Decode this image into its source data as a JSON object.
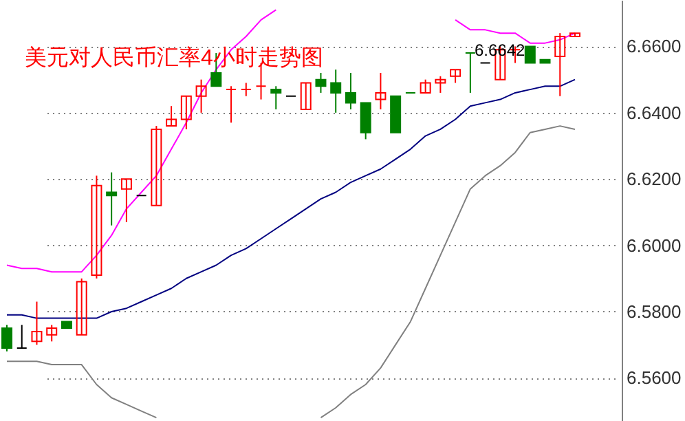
{
  "chart_data": {
    "type": "candlestick",
    "title": "美元对人民币汇率4小时走势图",
    "annotations": [
      {
        "text": "6.6642",
        "y": 6.6642
      }
    ],
    "categories": [
      null,
      null,
      null,
      null,
      null,
      null,
      null,
      null,
      null,
      null,
      null,
      null,
      null,
      null,
      null,
      null,
      null,
      null,
      null,
      null,
      null,
      null,
      null,
      null,
      null,
      null,
      null,
      null,
      null,
      null,
      null,
      null,
      null,
      null,
      null,
      null,
      null,
      null,
      null
    ],
    "ohlc": [
      [
        6.575,
        6.576,
        6.568,
        6.569
      ],
      [
        6.569,
        6.576,
        6.569,
        6.569
      ],
      [
        6.571,
        6.583,
        6.57,
        6.574
      ],
      [
        6.573,
        6.576,
        6.571,
        6.575
      ],
      [
        6.577,
        6.577,
        6.575,
        6.575
      ],
      [
        6.573,
        6.59,
        6.573,
        6.589
      ],
      [
        6.591,
        6.621,
        6.59,
        6.618
      ],
      [
        6.616,
        6.622,
        6.606,
        6.615
      ],
      [
        6.617,
        6.62,
        6.607,
        6.62
      ],
      [
        6.615,
        6.615,
        6.615,
        6.615
      ],
      [
        6.612,
        6.636,
        6.612,
        6.635
      ],
      [
        6.636,
        6.642,
        6.636,
        6.638
      ],
      [
        6.638,
        6.645,
        6.635,
        6.645
      ],
      [
        6.645,
        6.65,
        6.64,
        6.648
      ],
      [
        6.652,
        6.658,
        6.648,
        6.648
      ],
      [
        6.647,
        6.648,
        6.637,
        6.647
      ],
      [
        6.647,
        6.649,
        6.645,
        6.647
      ],
      [
        6.648,
        6.655,
        6.644,
        6.648
      ],
      [
        6.647,
        6.648,
        6.641,
        6.646
      ],
      [
        6.645,
        6.645,
        6.645,
        6.645
      ],
      [
        6.641,
        6.649,
        6.641,
        6.649
      ],
      [
        6.65,
        6.652,
        6.646,
        6.648
      ],
      [
        6.649,
        6.653,
        6.64,
        6.646
      ],
      [
        6.646,
        6.652,
        6.641,
        6.643
      ],
      [
        6.643,
        6.643,
        6.632,
        6.634
      ],
      [
        6.644,
        6.652,
        6.641,
        6.646
      ],
      [
        6.645,
        6.645,
        6.634,
        6.634
      ],
      [
        6.646,
        6.646,
        6.646,
        6.646
      ],
      [
        6.646,
        6.65,
        6.646,
        6.649
      ],
      [
        6.649,
        6.651,
        6.646,
        6.65
      ],
      [
        6.651,
        6.653,
        6.649,
        6.653
      ],
      [
        6.658,
        6.658,
        6.646,
        6.658
      ],
      [
        6.655,
        6.655,
        6.655,
        6.655
      ],
      [
        6.65,
        6.66,
        6.65,
        6.659
      ],
      [
        6.659,
        6.66,
        6.655,
        6.659
      ],
      [
        6.66,
        6.66,
        6.655,
        6.655
      ],
      [
        6.656,
        6.656,
        6.655,
        6.655
      ],
      [
        6.657,
        6.664,
        6.645,
        6.663
      ],
      [
        6.663,
        6.664,
        6.663,
        6.664
      ]
    ],
    "colors": [
      "#008000",
      "#000000",
      "#ff0000",
      "#ff0000",
      "#008000",
      "#ff0000",
      "#ff0000",
      "#008000",
      "#ff0000",
      "#000000",
      "#ff0000",
      "#ff0000",
      "#ff0000",
      "#ff0000",
      "#008000",
      "#ff0000",
      "#ff0000",
      "#ff0000",
      "#008000",
      "#000000",
      "#ff0000",
      "#008000",
      "#008000",
      "#008000",
      "#008000",
      "#ff0000",
      "#008000",
      "#008000",
      "#ff0000",
      "#ff0000",
      "#ff0000",
      "#008000",
      "#000000",
      "#ff0000",
      "#ff0000",
      "#008000",
      "#008000",
      "#ff0000",
      "#ff0000"
    ],
    "series": [
      {
        "type": "line",
        "color": "#ff00ff",
        "values": [
          6.594,
          6.593,
          6.593,
          6.592,
          6.592,
          6.592,
          6.597,
          6.603,
          6.611,
          6.616,
          6.621,
          6.629,
          6.637,
          6.646,
          6.653,
          6.659,
          6.663,
          6.668,
          6.671,
          null,
          null,
          null,
          null,
          null,
          null,
          null,
          null,
          null,
          null,
          null,
          6.668,
          6.665,
          6.665,
          6.664,
          6.664,
          6.661,
          6.661,
          6.662,
          6.664
        ]
      },
      {
        "type": "line",
        "color": "#000080",
        "values": [
          6.579,
          6.579,
          6.578,
          6.578,
          6.578,
          6.578,
          6.578,
          6.58,
          6.581,
          6.583,
          6.585,
          6.587,
          6.59,
          6.592,
          6.594,
          6.597,
          6.599,
          6.602,
          6.605,
          6.608,
          6.611,
          6.614,
          6.616,
          6.619,
          6.621,
          6.623,
          6.626,
          6.629,
          6.633,
          6.635,
          6.638,
          6.642,
          6.643,
          6.644,
          6.646,
          6.647,
          6.648,
          6.648,
          6.65
        ]
      },
      {
        "type": "line",
        "color": "#808080",
        "values": [
          6.565,
          6.565,
          6.565,
          6.564,
          6.564,
          6.564,
          6.558,
          6.554,
          6.552,
          6.55,
          6.548,
          null,
          null,
          null,
          null,
          null,
          null,
          null,
          null,
          null,
          null,
          6.548,
          6.551,
          6.555,
          6.558,
          6.563,
          6.57,
          6.577,
          6.587,
          6.597,
          6.607,
          6.617,
          6.621,
          6.624,
          6.628,
          6.634,
          6.635,
          6.636,
          6.635
        ]
      }
    ],
    "ylim": [
      6.547,
      6.674
    ],
    "yticks": [
      {
        "value": 6.56,
        "label": "6.5600"
      },
      {
        "value": 6.58,
        "label": "6.5800"
      },
      {
        "value": 6.6,
        "label": "6.6000"
      },
      {
        "value": 6.62,
        "label": "6.6200"
      },
      {
        "value": 6.64,
        "label": "6.6400"
      },
      {
        "value": 6.66,
        "label": "6.6600"
      }
    ],
    "grid": "y",
    "tick_labels": "y"
  }
}
